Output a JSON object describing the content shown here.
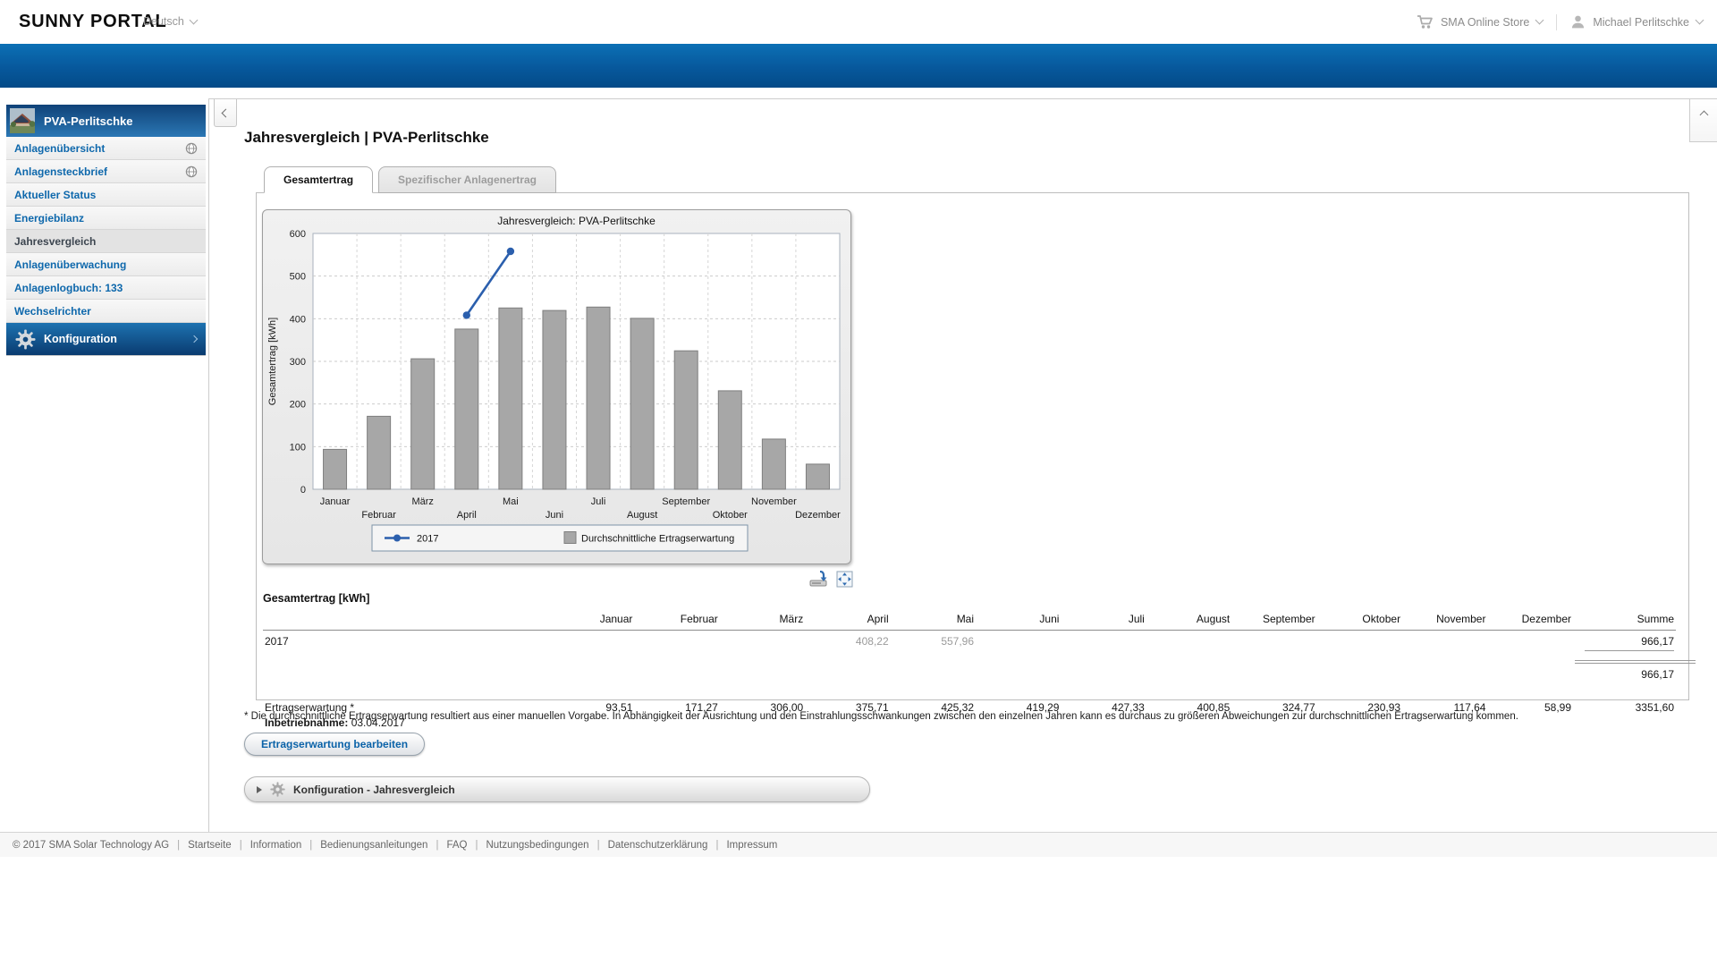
{
  "header": {
    "logo": "SUNNY PORTAL",
    "language_selector": "Deutsch",
    "store_link": "SMA Online Store",
    "user_menu": "Michael Perlitschke"
  },
  "sidebar": {
    "plant_name": "PVA-Perlitschke",
    "items": [
      {
        "label": "Anlagenübersicht",
        "globe": true,
        "active": false
      },
      {
        "label": "Anlagensteckbrief",
        "globe": true,
        "active": false
      },
      {
        "label": "Aktueller Status",
        "globe": false,
        "active": false
      },
      {
        "label": "Energiebilanz",
        "globe": false,
        "active": false
      },
      {
        "label": "Jahresvergleich",
        "globe": false,
        "active": true
      },
      {
        "label": "Anlagenüberwachung",
        "globe": false,
        "active": false
      },
      {
        "label": "Anlagenlogbuch: 133",
        "globe": false,
        "active": false
      },
      {
        "label": "Wechselrichter",
        "globe": false,
        "active": false
      }
    ],
    "config_label": "Konfiguration"
  },
  "page": {
    "title": "Jahresvergleich | PVA-Perlitschke",
    "tabs": [
      {
        "label": "Gesamtertrag",
        "state": "active"
      },
      {
        "label": "Spezifischer Anlagenertrag",
        "state": "disabled"
      }
    ]
  },
  "chart_data": {
    "type": "bar",
    "title": "Jahresvergleich: PVA-Perlitschke",
    "xlabel": "",
    "ylabel": "Gesamtertrag [kWh]",
    "ylim": [
      0,
      600
    ],
    "ytick_step": 100,
    "grid": true,
    "legend_position": "bottom",
    "categories": [
      "Januar",
      "Februar",
      "März",
      "April",
      "Mai",
      "Juni",
      "Juli",
      "August",
      "September",
      "Oktober",
      "November",
      "Dezember"
    ],
    "series": [
      {
        "name": "2017",
        "type": "line",
        "color": "#2b5fad",
        "values": [
          null,
          null,
          null,
          408.22,
          557.96,
          null,
          null,
          null,
          null,
          null,
          null,
          null
        ]
      },
      {
        "name": "Durchschnittliche Ertragserwartung",
        "type": "bar",
        "color": "#a7a7a7",
        "values": [
          93.51,
          171.27,
          306.0,
          375.71,
          425.32,
          419.29,
          427.33,
          400.85,
          324.77,
          230.93,
          117.64,
          58.99
        ]
      }
    ]
  },
  "table": {
    "heading": "Gesamtertrag [kWh]",
    "month_columns": [
      "Januar",
      "Februar",
      "März",
      "April",
      "Mai",
      "Juni",
      "Juli",
      "August",
      "September",
      "Oktober",
      "November",
      "Dezember"
    ],
    "summe_column": "Summe",
    "year_row": {
      "label": "2017",
      "values": [
        "",
        "",
        "",
        "408,22",
        "557,96",
        "",
        "",
        "",
        "",
        "",
        "",
        ""
      ],
      "summe": "966,17"
    },
    "total_row": {
      "summe": "966,17"
    },
    "expectation_row": {
      "label": "Ertragserwartung *",
      "sublabel_bold": "Inbetriebnahme:",
      "sublabel_value": "03.04.2017",
      "values": [
        "93,51",
        "171,27",
        "306,00",
        "375,71",
        "425,32",
        "419,29",
        "427,33",
        "400,85",
        "324,77",
        "230,93",
        "117,64",
        "58,99"
      ],
      "summe": "3351,60"
    }
  },
  "footnote": "* Die durchschnittliche Ertragserwartung resultiert aus einer manuellen Vorgabe. In Abhängigkeit der Ausrichtung und den Einstrahlungsschwankungen zwischen den einzelnen Jahren kann es durchaus zu größeren Abweichungen zur durchschnittlichen Ertragserwartung kommen.",
  "actions": {
    "edit_button": "Ertragserwartung bearbeiten",
    "config_panel": "Konfiguration - Jahresvergleich"
  },
  "footer": {
    "copyright": "© 2017 SMA Solar Technology AG",
    "links": [
      "Startseite",
      "Information",
      "Bedienungsanleitungen",
      "FAQ",
      "Nutzungsbedingungen",
      "Datenschutzerklärung",
      "Impressum"
    ]
  },
  "colors": {
    "banner_blue_top": "#0c70b5",
    "banner_blue_bottom": "#034b88",
    "link_blue": "#0e68ac",
    "line_series": "#2b5fad",
    "bar_fill": "#a7a7a7"
  }
}
